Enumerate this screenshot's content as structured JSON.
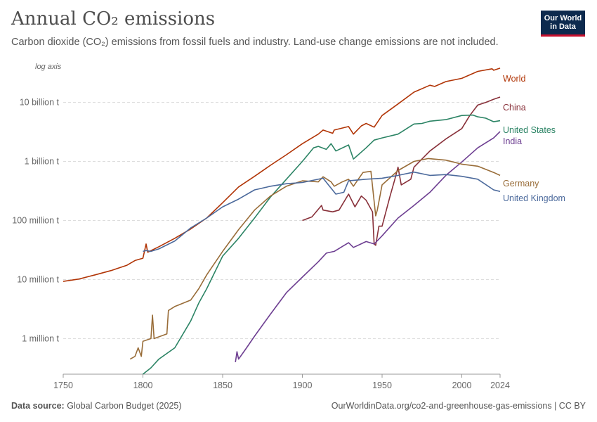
{
  "header": {
    "title": "Annual CO₂ emissions",
    "subtitle": "Carbon dioxide (CO₂) emissions from fossil fuels and industry. Land-use change emissions are not included.",
    "logo_text": "Our World in Data"
  },
  "footer": {
    "source_label": "Data source:",
    "source_text": "Global Carbon Budget (2025)",
    "right_text": "OurWorldinData.org/co2-and-greenhouse-gas-emissions | CC BY"
  },
  "chart_data": {
    "type": "line",
    "title": "Annual CO₂ emissions",
    "axis_note": "log axis",
    "y_scale": "log",
    "ylim": [
      250000,
      40000000000
    ],
    "xlim": [
      1750,
      2024
    ],
    "x_ticks": [
      1750,
      1800,
      1850,
      1900,
      1950,
      2000,
      2024
    ],
    "y_ticks": [
      {
        "value": 1000000,
        "label": "1 million t"
      },
      {
        "value": 10000000,
        "label": "10 million t"
      },
      {
        "value": 100000000,
        "label": "100 million t"
      },
      {
        "value": 1000000000,
        "label": "1 billion t"
      },
      {
        "value": 10000000000,
        "label": "10 billion t"
      }
    ],
    "grid": true,
    "series": [
      {
        "name": "World",
        "color": "#b13507",
        "points": [
          [
            1750,
            9300000
          ],
          [
            1760,
            10200000
          ],
          [
            1770,
            12000000
          ],
          [
            1780,
            14200000
          ],
          [
            1790,
            17500000
          ],
          [
            1795,
            21000000
          ],
          [
            1800,
            23000000
          ],
          [
            1802,
            40000000
          ],
          [
            1803,
            29000000
          ],
          [
            1810,
            36000000
          ],
          [
            1820,
            50000000
          ],
          [
            1830,
            72000000
          ],
          [
            1840,
            110000000
          ],
          [
            1850,
            200000000
          ],
          [
            1860,
            370000000
          ],
          [
            1870,
            560000000
          ],
          [
            1880,
            860000000
          ],
          [
            1890,
            1300000000
          ],
          [
            1900,
            2000000000
          ],
          [
            1910,
            2900000000
          ],
          [
            1913,
            3400000000
          ],
          [
            1919,
            3000000000
          ],
          [
            1920,
            3400000000
          ],
          [
            1929,
            3900000000
          ],
          [
            1932,
            2900000000
          ],
          [
            1937,
            4000000000
          ],
          [
            1940,
            4400000000
          ],
          [
            1945,
            3800000000
          ],
          [
            1950,
            6000000000
          ],
          [
            1960,
            9400000000
          ],
          [
            1970,
            14900000000
          ],
          [
            1980,
            19500000000
          ],
          [
            1983,
            18600000000
          ],
          [
            1990,
            22500000000
          ],
          [
            2000,
            25500000000
          ],
          [
            2010,
            33500000000
          ],
          [
            2019,
            37000000000
          ],
          [
            2020,
            35000000000
          ],
          [
            2024,
            38000000000
          ]
        ]
      },
      {
        "name": "China",
        "color": "#883039",
        "points": [
          [
            1900,
            100000000
          ],
          [
            1906,
            115000000
          ],
          [
            1912,
            180000000
          ],
          [
            1913,
            150000000
          ],
          [
            1919,
            140000000
          ],
          [
            1923,
            150000000
          ],
          [
            1929,
            280000000
          ],
          [
            1933,
            170000000
          ],
          [
            1937,
            260000000
          ],
          [
            1940,
            220000000
          ],
          [
            1944,
            140000000
          ],
          [
            1945,
            40000000
          ],
          [
            1946,
            38000000
          ],
          [
            1948,
            80000000
          ],
          [
            1950,
            80000000
          ],
          [
            1955,
            260000000
          ],
          [
            1958,
            500000000
          ],
          [
            1960,
            800000000
          ],
          [
            1962,
            400000000
          ],
          [
            1968,
            500000000
          ],
          [
            1970,
            800000000
          ],
          [
            1975,
            1100000000
          ],
          [
            1980,
            1500000000
          ],
          [
            1990,
            2400000000
          ],
          [
            2000,
            3600000000
          ],
          [
            2005,
            6000000000
          ],
          [
            2010,
            9000000000
          ],
          [
            2015,
            10000000000
          ],
          [
            2020,
            11300000000
          ],
          [
            2024,
            12300000000
          ]
        ]
      },
      {
        "name": "United States",
        "color": "#2c8465",
        "points": [
          [
            1800,
            250000
          ],
          [
            1805,
            320000
          ],
          [
            1810,
            450000
          ],
          [
            1820,
            700000
          ],
          [
            1830,
            2000000
          ],
          [
            1835,
            4000000
          ],
          [
            1840,
            7000000
          ],
          [
            1850,
            25000000
          ],
          [
            1860,
            50000000
          ],
          [
            1870,
            110000000
          ],
          [
            1880,
            250000000
          ],
          [
            1890,
            500000000
          ],
          [
            1900,
            1000000000
          ],
          [
            1907,
            1700000000
          ],
          [
            1910,
            1800000000
          ],
          [
            1915,
            1600000000
          ],
          [
            1918,
            2000000000
          ],
          [
            1921,
            1500000000
          ],
          [
            1929,
            1900000000
          ],
          [
            1932,
            1100000000
          ],
          [
            1940,
            1700000000
          ],
          [
            1945,
            2300000000
          ],
          [
            1950,
            2500000000
          ],
          [
            1960,
            2900000000
          ],
          [
            1970,
            4300000000
          ],
          [
            1975,
            4400000000
          ],
          [
            1980,
            4800000000
          ],
          [
            1990,
            5100000000
          ],
          [
            2000,
            6000000000
          ],
          [
            2007,
            6100000000
          ],
          [
            2010,
            5700000000
          ],
          [
            2015,
            5400000000
          ],
          [
            2020,
            4700000000
          ],
          [
            2024,
            4900000000
          ]
        ]
      },
      {
        "name": "India",
        "color": "#6d3e91",
        "points": [
          [
            1858,
            400000
          ],
          [
            1859,
            600000
          ],
          [
            1860,
            450000
          ],
          [
            1865,
            700000
          ],
          [
            1870,
            1100000
          ],
          [
            1880,
            2600000
          ],
          [
            1890,
            6000000
          ],
          [
            1900,
            11000000
          ],
          [
            1910,
            20000000
          ],
          [
            1915,
            28000000
          ],
          [
            1920,
            30000000
          ],
          [
            1929,
            42000000
          ],
          [
            1932,
            35000000
          ],
          [
            1940,
            44000000
          ],
          [
            1945,
            40000000
          ],
          [
            1950,
            55000000
          ],
          [
            1960,
            110000000
          ],
          [
            1970,
            180000000
          ],
          [
            1980,
            300000000
          ],
          [
            1990,
            580000000
          ],
          [
            2000,
            980000000
          ],
          [
            2010,
            1700000000
          ],
          [
            2020,
            2500000000
          ],
          [
            2024,
            3200000000
          ]
        ]
      },
      {
        "name": "Germany",
        "color": "#996d39",
        "points": [
          [
            1792,
            450000
          ],
          [
            1795,
            500000
          ],
          [
            1797,
            700000
          ],
          [
            1799,
            500000
          ],
          [
            1800,
            900000
          ],
          [
            1805,
            1000000
          ],
          [
            1806,
            2500000
          ],
          [
            1807,
            1000000
          ],
          [
            1815,
            1200000
          ],
          [
            1816,
            3000000
          ],
          [
            1820,
            3500000
          ],
          [
            1830,
            4500000
          ],
          [
            1835,
            7000000
          ],
          [
            1840,
            12000000
          ],
          [
            1850,
            30000000
          ],
          [
            1860,
            70000000
          ],
          [
            1870,
            150000000
          ],
          [
            1880,
            260000000
          ],
          [
            1890,
            380000000
          ],
          [
            1900,
            470000000
          ],
          [
            1910,
            450000000
          ],
          [
            1913,
            550000000
          ],
          [
            1918,
            450000000
          ],
          [
            1920,
            380000000
          ],
          [
            1925,
            450000000
          ],
          [
            1929,
            500000000
          ],
          [
            1932,
            380000000
          ],
          [
            1938,
            650000000
          ],
          [
            1943,
            680000000
          ],
          [
            1946,
            120000000
          ],
          [
            1947,
            150000000
          ],
          [
            1950,
            400000000
          ],
          [
            1960,
            700000000
          ],
          [
            1970,
            1000000000
          ],
          [
            1979,
            1120000000
          ],
          [
            1990,
            1050000000
          ],
          [
            2000,
            900000000
          ],
          [
            2010,
            830000000
          ],
          [
            2020,
            650000000
          ],
          [
            2024,
            580000000
          ]
        ]
      },
      {
        "name": "United Kingdom",
        "color": "#4c6a9c",
        "points": [
          [
            1800,
            30000000
          ],
          [
            1802,
            31000000
          ],
          [
            1805,
            30000000
          ],
          [
            1810,
            33000000
          ],
          [
            1820,
            45000000
          ],
          [
            1830,
            75000000
          ],
          [
            1840,
            110000000
          ],
          [
            1850,
            170000000
          ],
          [
            1860,
            230000000
          ],
          [
            1870,
            330000000
          ],
          [
            1880,
            380000000
          ],
          [
            1890,
            420000000
          ],
          [
            1900,
            440000000
          ],
          [
            1913,
            520000000
          ],
          [
            1921,
            280000000
          ],
          [
            1926,
            300000000
          ],
          [
            1929,
            470000000
          ],
          [
            1940,
            500000000
          ],
          [
            1950,
            520000000
          ],
          [
            1960,
            580000000
          ],
          [
            1970,
            660000000
          ],
          [
            1980,
            580000000
          ],
          [
            1990,
            600000000
          ],
          [
            2000,
            560000000
          ],
          [
            2010,
            500000000
          ],
          [
            2020,
            330000000
          ],
          [
            2024,
            310000000
          ]
        ]
      }
    ]
  }
}
